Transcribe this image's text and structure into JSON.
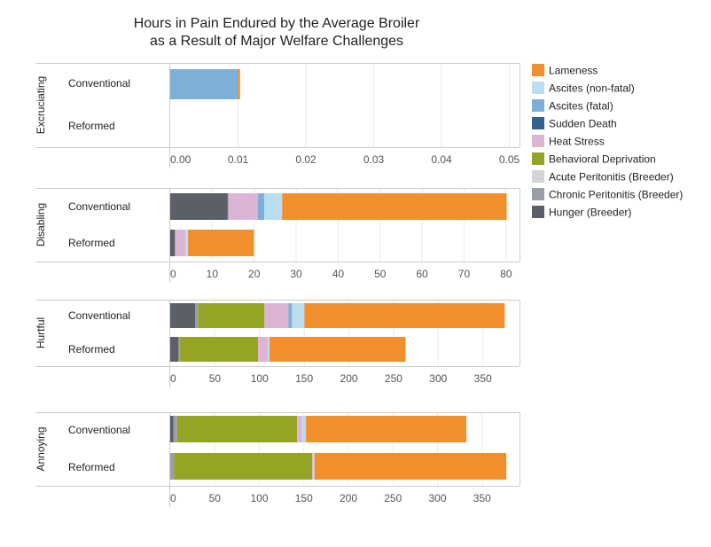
{
  "chart_data": {
    "type": "bar",
    "orientation": "horizontal",
    "stacked": true,
    "title": [
      "Hours in Pain Endured by the Average Broiler",
      "as a Result of Major Welfare Challenges"
    ],
    "categories": [
      "Conventional",
      "Reformed"
    ],
    "grid": true,
    "legend_position": "right",
    "series": [
      {
        "name": "Hunger (Breeder)",
        "color": "#5b5f68"
      },
      {
        "name": "Chronic Peritonitis (Breeder)",
        "color": "#9a9ea6"
      },
      {
        "name": "Acute Peritonitis (Breeder)",
        "color": "#d4d4d4"
      },
      {
        "name": "Behavioral Deprivation",
        "color": "#95a424"
      },
      {
        "name": "Heat Stress",
        "color": "#ddb5d4"
      },
      {
        "name": "Sudden Death",
        "color": "#35618f"
      },
      {
        "name": "Ascites (fatal)",
        "color": "#7eb0d7"
      },
      {
        "name": "Ascites (non-fatal)",
        "color": "#b9def0"
      },
      {
        "name": "Lameness",
        "color": "#f28f2d"
      }
    ],
    "legend_order": [
      "Lameness",
      "Ascites (non-fatal)",
      "Ascites (fatal)",
      "Sudden Death",
      "Heat Stress",
      "Behavioral Deprivation",
      "Acute Peritonitis (Breeder)",
      "Chronic Peritonitis (Breeder)",
      "Hunger (Breeder)"
    ],
    "panels": [
      {
        "label": "Excruciating",
        "xlim": [
          0,
          0.0515
        ],
        "ticks": [
          "0.00",
          "0.01",
          "0.02",
          "0.03",
          "0.04",
          "0.05"
        ],
        "tick_values": [
          0,
          0.01,
          0.02,
          0.03,
          0.04,
          0.05
        ],
        "values": {
          "Conventional": [
            0,
            0,
            0,
            0,
            0,
            0,
            0.01,
            0,
            0.0003
          ],
          "Reformed": [
            0,
            0,
            0,
            0,
            0,
            0,
            0,
            0,
            0
          ]
        }
      },
      {
        "label": "Disabling",
        "xlim": [
          0,
          83.2
        ],
        "ticks": [
          "0",
          "10",
          "20",
          "30",
          "40",
          "50",
          "60",
          "70",
          "80"
        ],
        "tick_values": [
          0,
          10,
          20,
          30,
          40,
          50,
          60,
          70,
          80
        ],
        "values": {
          "Conventional": [
            13.7,
            0.2,
            0,
            0,
            7.0,
            0,
            1.5,
            4.25,
            53.5
          ],
          "Reformed": [
            1.1,
            0.15,
            0,
            0,
            2.4,
            0,
            0,
            0.6,
            15.7
          ]
        }
      },
      {
        "label": "Hurtful",
        "xlim": [
          0,
          391
        ],
        "ticks": [
          "0",
          "50",
          "100",
          "150",
          "200",
          "250",
          "300",
          "350"
        ],
        "tick_values": [
          0,
          50,
          100,
          150,
          200,
          250,
          300,
          350
        ],
        "values": {
          "Conventional": [
            28.1,
            3,
            0,
            74.4,
            26.8,
            0,
            4,
            13.9,
            224.3
          ],
          "Reformed": [
            9.3,
            1.7,
            0,
            87.3,
            11.2,
            0,
            0,
            1.7,
            152.2
          ]
        }
      },
      {
        "label": "Annoying",
        "xlim": [
          0,
          392
        ],
        "ticks": [
          "0",
          "50",
          "100",
          "150",
          "200",
          "250",
          "300",
          "350"
        ],
        "tick_values": [
          0,
          50,
          100,
          150,
          200,
          250,
          300,
          350
        ],
        "values": {
          "Conventional": [
            3.7,
            4,
            0,
            134.7,
            5.3,
            0,
            0,
            4.7,
            180
          ],
          "Reformed": [
            0,
            4.3,
            0,
            155,
            1.3,
            0,
            0,
            1.3,
            215.3
          ]
        }
      }
    ]
  }
}
